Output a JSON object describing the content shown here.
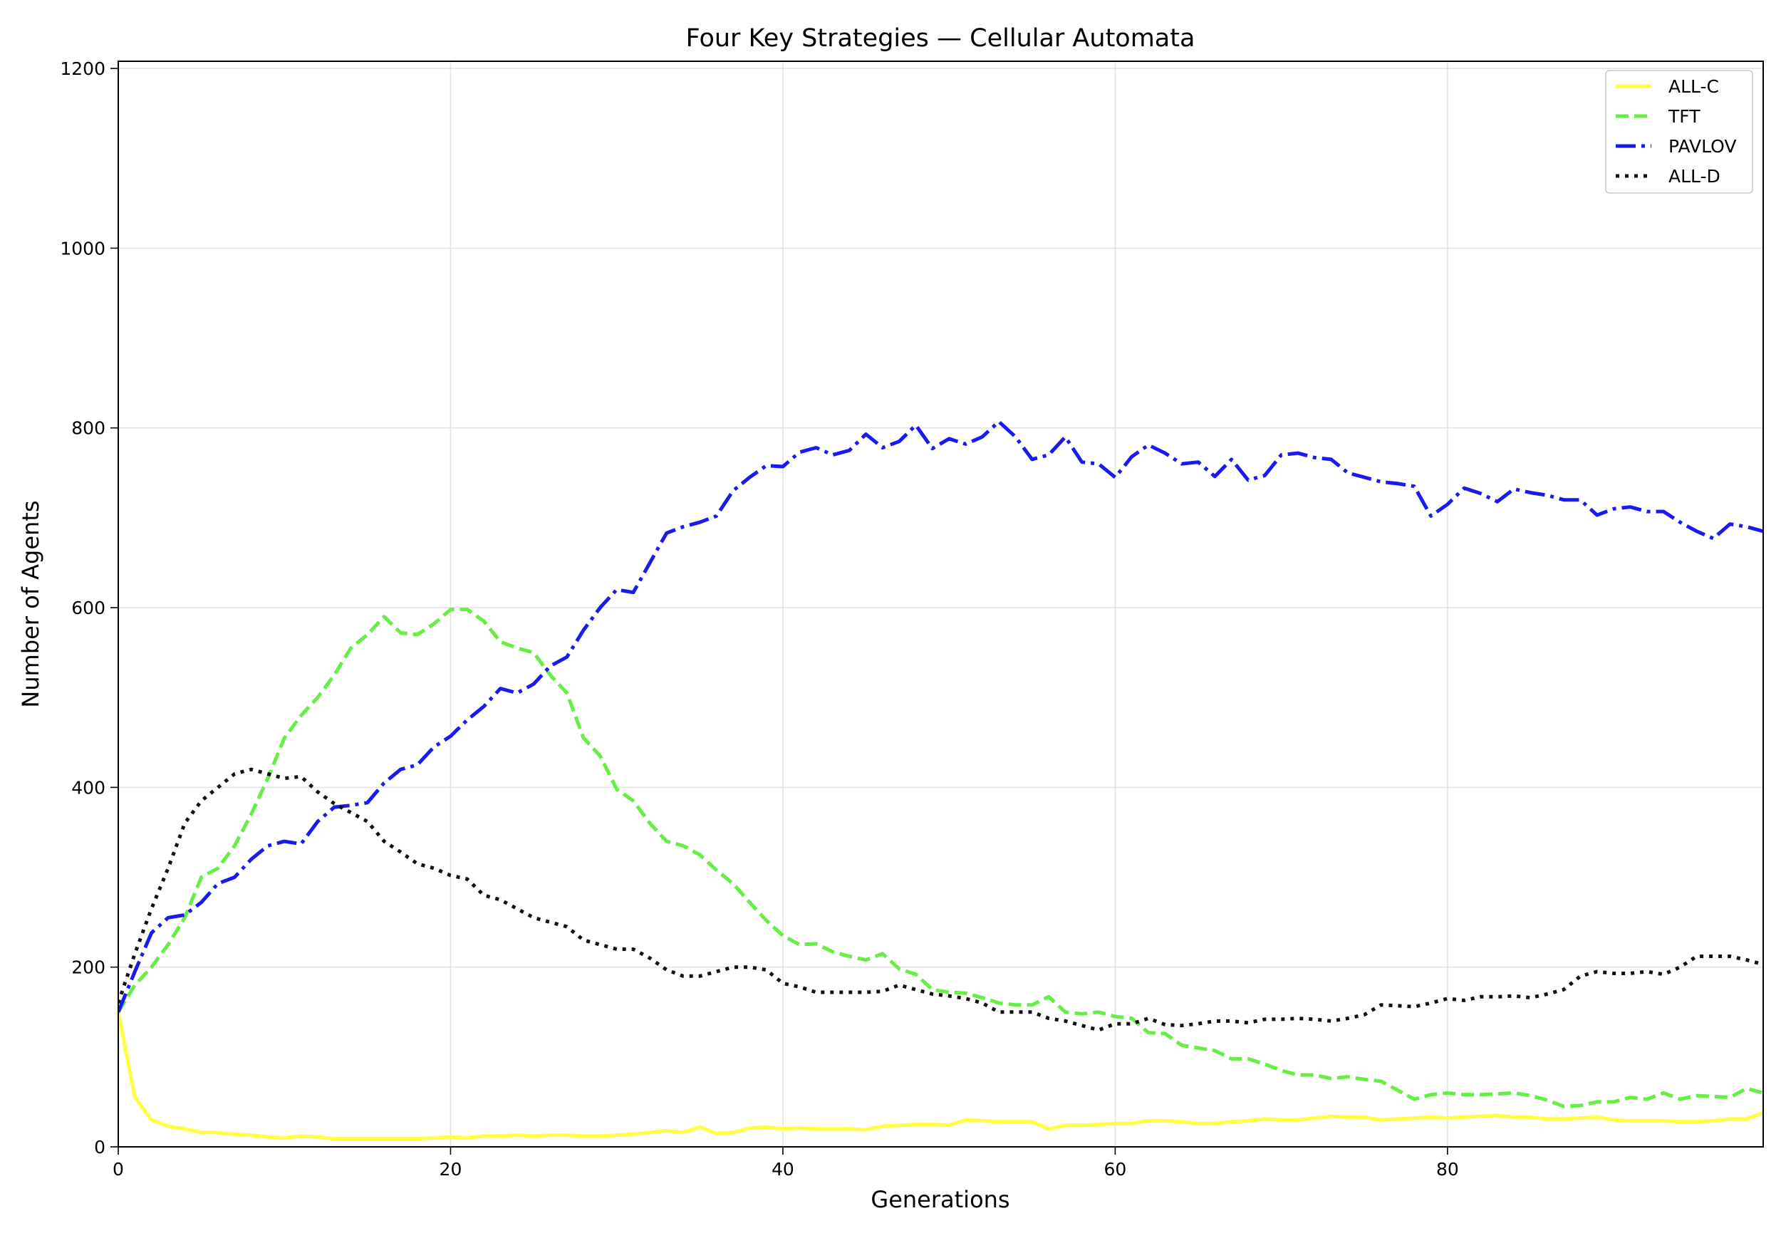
{
  "chart_data": {
    "type": "line",
    "title": "Four Key Strategies — Cellular Automata",
    "xlabel": "Generations",
    "ylabel": "Number of Agents",
    "xlim": [
      0,
      99
    ],
    "ylim": [
      0,
      1208
    ],
    "xticks": [
      0,
      20,
      40,
      60,
      80
    ],
    "yticks": [
      0,
      200,
      400,
      600,
      800,
      1000,
      1200
    ],
    "grid": true,
    "legend_placement": "top-right",
    "series": [
      {
        "name": "ALL-C",
        "color": "#ffff44",
        "style": "solid",
        "values": [
          150,
          55,
          30,
          23,
          20,
          16,
          16,
          14,
          13,
          11,
          10,
          12,
          11,
          9,
          9,
          9,
          9,
          9,
          9,
          10,
          11,
          10,
          12,
          12,
          13,
          12,
          13,
          13,
          12,
          12,
          13,
          14,
          16,
          18,
          16,
          22,
          15,
          16,
          21,
          22,
          20,
          21,
          20,
          20,
          20,
          19,
          23,
          24,
          25,
          25,
          24,
          30,
          29,
          28,
          28,
          28,
          20,
          24,
          24,
          25,
          26,
          26,
          29,
          29,
          28,
          26,
          26,
          28,
          29,
          31,
          30,
          30,
          32,
          34,
          33,
          33,
          30,
          31,
          32,
          33,
          32,
          33,
          34,
          35,
          33,
          33,
          31,
          31,
          32,
          33,
          30,
          29,
          29,
          29,
          28,
          28,
          29,
          31,
          31,
          38
        ]
      },
      {
        "name": "TFT",
        "color": "#66ee44",
        "style": "dashed",
        "values": [
          150,
          180,
          200,
          225,
          255,
          300,
          310,
          335,
          370,
          410,
          455,
          480,
          500,
          525,
          555,
          570,
          590,
          572,
          570,
          582,
          598,
          598,
          585,
          562,
          555,
          550,
          525,
          505,
          455,
          435,
          398,
          385,
          360,
          340,
          335,
          325,
          308,
          293,
          272,
          252,
          235,
          225,
          226,
          217,
          212,
          208,
          215,
          198,
          192,
          175,
          172,
          171,
          166,
          160,
          158,
          158,
          167,
          150,
          148,
          150,
          145,
          143,
          127,
          126,
          113,
          110,
          107,
          98,
          98,
          92,
          85,
          80,
          80,
          76,
          78,
          75,
          73,
          63,
          53,
          58,
          60,
          58,
          58,
          59,
          60,
          57,
          52,
          45,
          46,
          50,
          50,
          55,
          53,
          60,
          53,
          57,
          56,
          55,
          65,
          60
        ]
      },
      {
        "name": "PAVLOV",
        "color": "#1a1aee",
        "style": "dashdot",
        "values": [
          150,
          195,
          238,
          255,
          258,
          272,
          293,
          300,
          320,
          335,
          340,
          337,
          362,
          378,
          380,
          383,
          405,
          420,
          425,
          445,
          457,
          475,
          490,
          510,
          505,
          515,
          535,
          545,
          575,
          600,
          620,
          617,
          650,
          683,
          690,
          695,
          702,
          730,
          745,
          758,
          757,
          773,
          778,
          770,
          775,
          793,
          778,
          785,
          803,
          777,
          788,
          782,
          790,
          807,
          790,
          765,
          770,
          790,
          762,
          760,
          745,
          768,
          781,
          772,
          760,
          762,
          746,
          765,
          742,
          747,
          770,
          772,
          767,
          765,
          750,
          745,
          740,
          738,
          735,
          702,
          715,
          733,
          727,
          718,
          732,
          728,
          725,
          720,
          720,
          703,
          710,
          712,
          707,
          707,
          695,
          685,
          677,
          693,
          690,
          685
        ]
      },
      {
        "name": "ALL-D",
        "color": "#111111",
        "style": "dotted",
        "values": [
          160,
          215,
          265,
          310,
          360,
          385,
          400,
          415,
          420,
          415,
          410,
          412,
          395,
          382,
          372,
          362,
          340,
          328,
          315,
          310,
          302,
          298,
          280,
          275,
          265,
          255,
          250,
          245,
          230,
          225,
          220,
          220,
          210,
          197,
          190,
          190,
          195,
          200,
          200,
          197,
          182,
          178,
          172,
          172,
          172,
          172,
          173,
          180,
          175,
          170,
          168,
          165,
          160,
          150,
          150,
          150,
          143,
          140,
          135,
          130,
          137,
          137,
          143,
          136,
          135,
          137,
          140,
          140,
          138,
          142,
          142,
          143,
          142,
          140,
          143,
          147,
          158,
          157,
          156,
          160,
          165,
          163,
          167,
          167,
          168,
          166,
          170,
          175,
          190,
          195,
          193,
          193,
          195,
          192,
          200,
          212,
          212,
          212,
          208,
          203
        ]
      }
    ]
  }
}
